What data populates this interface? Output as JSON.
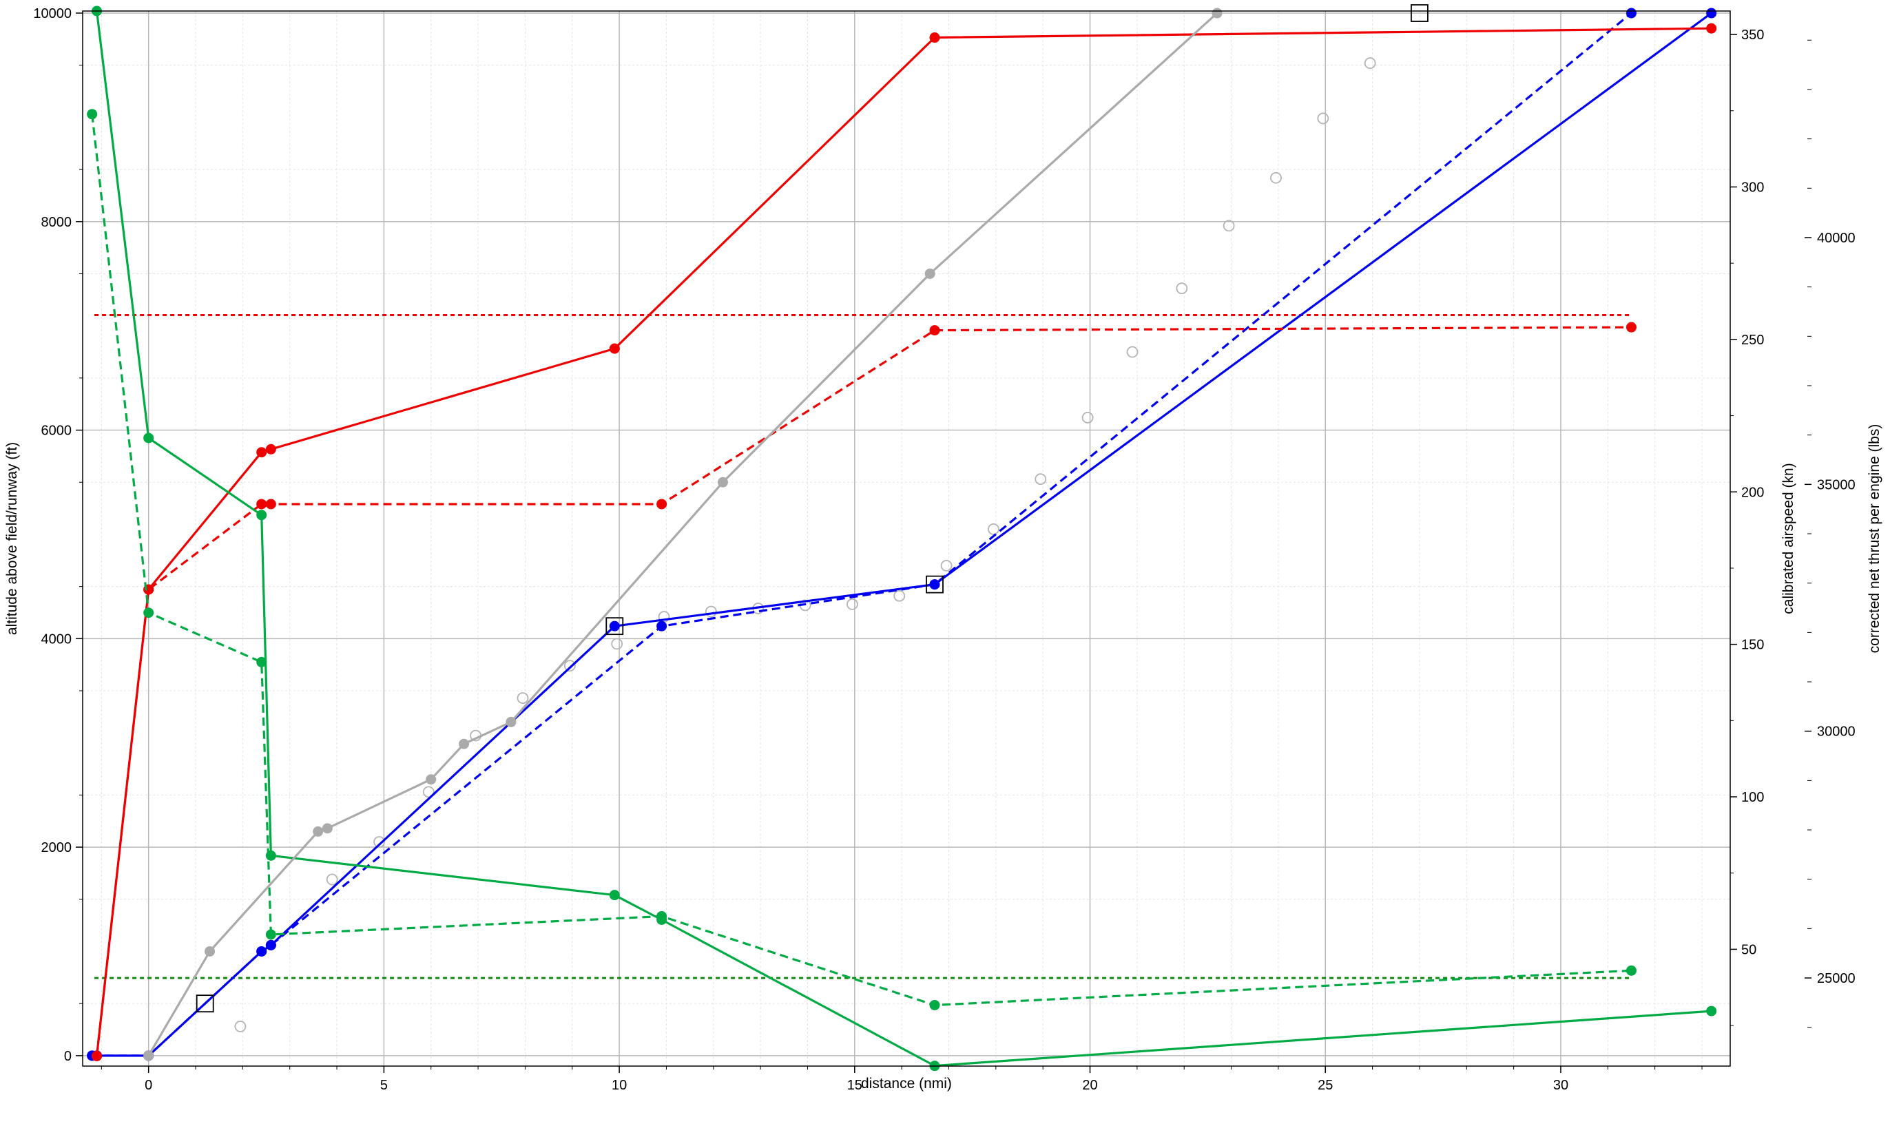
{
  "chart_data": {
    "type": "line",
    "title": "",
    "xlabel": "distance (nmi)",
    "ylabel_left": "altitude above field/runway (ft)",
    "ylabel_right1": "calibrated airspeed (kn)",
    "ylabel_right2": "corrected net thrust per engine (lbs)",
    "xlim": [
      -1.4,
      33.6
    ],
    "ylim_left": [
      -100,
      10020
    ],
    "ylim_right1": [
      11.7,
      357.7
    ],
    "ylim_right2": [
      23215,
      44590
    ],
    "x_ticks": [
      0,
      5,
      10,
      15,
      20,
      25,
      30
    ],
    "y_left_ticks": [
      0,
      2000,
      4000,
      6000,
      8000,
      10000
    ],
    "y_right1_ticks": [
      50,
      100,
      150,
      200,
      250,
      300,
      350
    ],
    "y_right2_ticks": [
      25000,
      30000,
      35000,
      40000
    ],
    "grid": true,
    "legend": "none",
    "colors": {
      "altitude": "#0000ee",
      "airspeed": "#ee0000",
      "thrust": "#00aa44",
      "reference": "#aaaaaa",
      "thrust_reference": "#118811"
    },
    "series": [
      {
        "axis": "left",
        "color": "#0000ee",
        "style": "solid",
        "x": [
          -1.2,
          -1.1,
          0,
          2.4,
          2.6,
          9.9,
          16.7,
          33.2
        ],
        "y": [
          0,
          0,
          0,
          1000,
          1060,
          4120,
          4520,
          10000
        ]
      },
      {
        "axis": "left",
        "color": "#0000ee",
        "style": "dashed",
        "x": [
          -1.2,
          -1.1,
          0,
          2.4,
          2.6,
          10.9,
          16.7,
          31.5
        ],
        "y": [
          0,
          0,
          0,
          1000,
          1060,
          4120,
          4520,
          10000
        ]
      },
      {
        "axis": "right1",
        "color": "#ee0000",
        "style": "solid",
        "x": [
          -1.1,
          0,
          2.4,
          2.6,
          9.9,
          16.7,
          33.2
        ],
        "y": [
          15,
          168,
          213,
          214,
          247,
          349,
          352
        ]
      },
      {
        "axis": "right1",
        "color": "#ee0000",
        "style": "dashed",
        "x": [
          -1.1,
          0,
          2.4,
          2.6,
          10.9,
          16.7,
          31.5
        ],
        "y": [
          15,
          168,
          196,
          196,
          196,
          253,
          254
        ]
      },
      {
        "axis": "right2",
        "color": "#00aa44",
        "style": "solid",
        "x": [
          -1.1,
          0,
          2.4,
          2.6,
          9.9,
          10.9,
          16.7,
          33.2
        ],
        "y": [
          44590,
          35940,
          34380,
          27480,
          26680,
          26180,
          23220,
          24330
        ]
      },
      {
        "axis": "right2",
        "color": "#00aa44",
        "style": "dashed",
        "x": [
          -1.2,
          0,
          2.4,
          2.6,
          10.9,
          16.7,
          31.5
        ],
        "y": [
          42500,
          32400,
          31400,
          25880,
          26250,
          24450,
          25150
        ]
      },
      {
        "axis": "left",
        "color": "#aaaaaa",
        "style": "solid",
        "x": [
          0,
          1.3,
          3.6,
          3.8,
          6.0,
          6.7,
          7.7,
          12.2,
          16.6,
          22.7
        ],
        "y": [
          0,
          1000,
          2150,
          2180,
          2650,
          2990,
          3200,
          5500,
          7500,
          10000
        ]
      }
    ],
    "reference_points": {
      "axis": "left",
      "x": [
        1.95,
        3.9,
        4.9,
        5.95,
        6.95,
        7.95,
        8.95,
        9.95,
        10.95,
        11.95,
        12.95,
        13.95,
        14.95,
        15.95,
        16.95,
        17.95,
        18.95,
        19.95,
        20.9,
        21.95,
        22.95,
        23.95,
        24.95,
        25.95
      ],
      "y": [
        280,
        1690,
        2050,
        2530,
        3070,
        3430,
        3740,
        3950,
        4210,
        4260,
        4290,
        4320,
        4330,
        4410,
        4700,
        5050,
        5530,
        6120,
        6750,
        7360,
        7960,
        8420,
        8990,
        9520
      ]
    },
    "markers": {
      "axis": "left",
      "x": [
        1.2,
        9.9,
        16.7,
        27.0
      ],
      "y": [
        500,
        4120,
        4520,
        10000
      ]
    },
    "reference_lines": [
      {
        "axis": "right1",
        "value": 258,
        "color": "#ee0000",
        "style": "dotted"
      },
      {
        "axis": "right2",
        "value": 25000,
        "color": "#118811",
        "style": "dotted"
      }
    ]
  }
}
